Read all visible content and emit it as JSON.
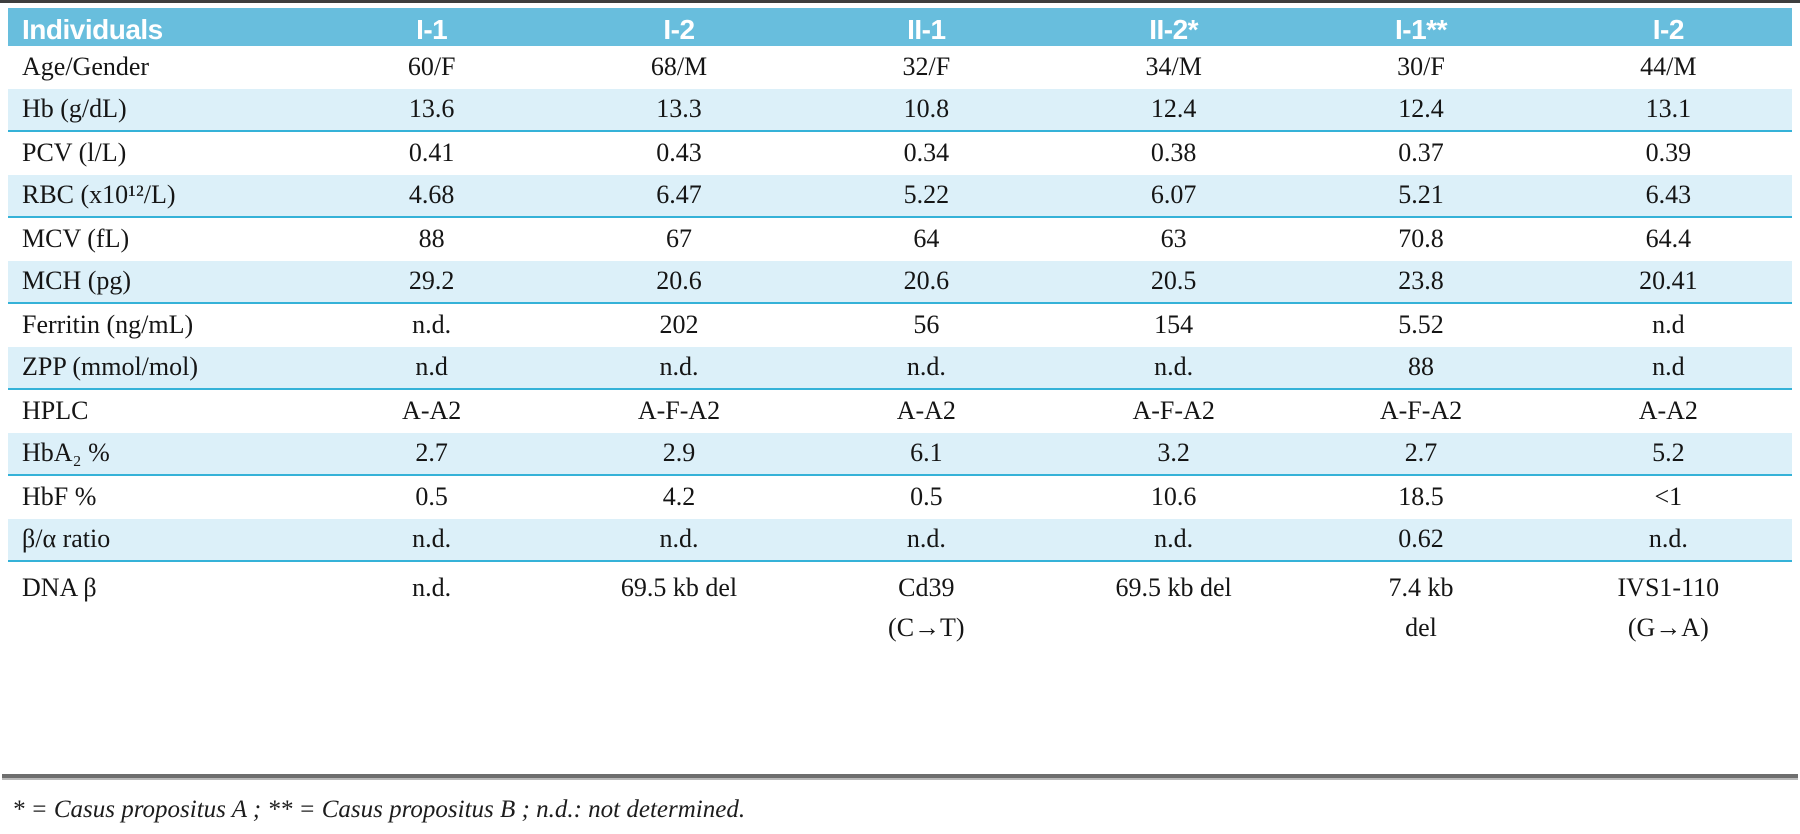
{
  "colors": {
    "header_bg": "#68bedd",
    "header_text": "#ffffff",
    "stripe_bg": "#dcf0f9",
    "stripe_border": "#35b2d8"
  },
  "table": {
    "columns": [
      "Individuals",
      "I-1",
      "I-2",
      "II-1",
      "II-2*",
      "I-1**",
      "I-2"
    ],
    "rows": [
      {
        "label": "Age/Gender",
        "values": [
          "60/F",
          "68/M",
          "32/F",
          "34/M",
          "30/F",
          "44/M"
        ]
      },
      {
        "label": "Hb (g/dL)",
        "values": [
          "13.6",
          "13.3",
          "10.8",
          "12.4",
          "12.4",
          "13.1"
        ]
      },
      {
        "label": "PCV (l/L)",
        "values": [
          "0.41",
          "0.43",
          "0.34",
          "0.38",
          "0.37",
          "0.39"
        ]
      },
      {
        "label": "RBC (x10¹²/L)",
        "values": [
          "4.68",
          "6.47",
          "5.22",
          "6.07",
          "5.21",
          "6.43"
        ]
      },
      {
        "label": "MCV (fL)",
        "values": [
          "88",
          "67",
          "64",
          "63",
          "70.8",
          "64.4"
        ]
      },
      {
        "label": "MCH (pg)",
        "values": [
          "29.2",
          "20.6",
          "20.6",
          "20.5",
          "23.8",
          "20.41"
        ]
      },
      {
        "label": "Ferritin (ng/mL)",
        "values": [
          "n.d.",
          "202",
          "56",
          "154",
          "5.52",
          "n.d"
        ]
      },
      {
        "label": "ZPP (mmol/mol)",
        "values": [
          "n.d",
          "n.d.",
          "n.d.",
          "n.d.",
          "88",
          "n.d"
        ]
      },
      {
        "label": "HPLC",
        "values": [
          "A-A2",
          "A-F-A2",
          "A-A2",
          "A-F-A2",
          "A-F-A2",
          "A-A2"
        ]
      },
      {
        "label": "HbA₂ %",
        "values": [
          "2.7",
          "2.9",
          "6.1",
          "3.2",
          "2.7",
          "5.2"
        ]
      },
      {
        "label": "HbF %",
        "values": [
          "0.5",
          "4.2",
          "0.5",
          "10.6",
          "18.5",
          "<1"
        ]
      },
      {
        "label": "β/α ratio",
        "values": [
          "n.d.",
          "n.d.",
          "n.d.",
          "n.d.",
          "0.62",
          "n.d."
        ]
      },
      {
        "label": "DNA β",
        "multiline": true,
        "values": [
          "n.d.",
          "69.5 kb del",
          "Cd39\n(C→T)",
          "69.5 kb del",
          "7.4 kb\ndel",
          "IVS1-110\n(G→A)"
        ]
      }
    ]
  },
  "footnote": "* = Casus propositus A ; ** = Casus propositus B ; n.d.: not determined."
}
